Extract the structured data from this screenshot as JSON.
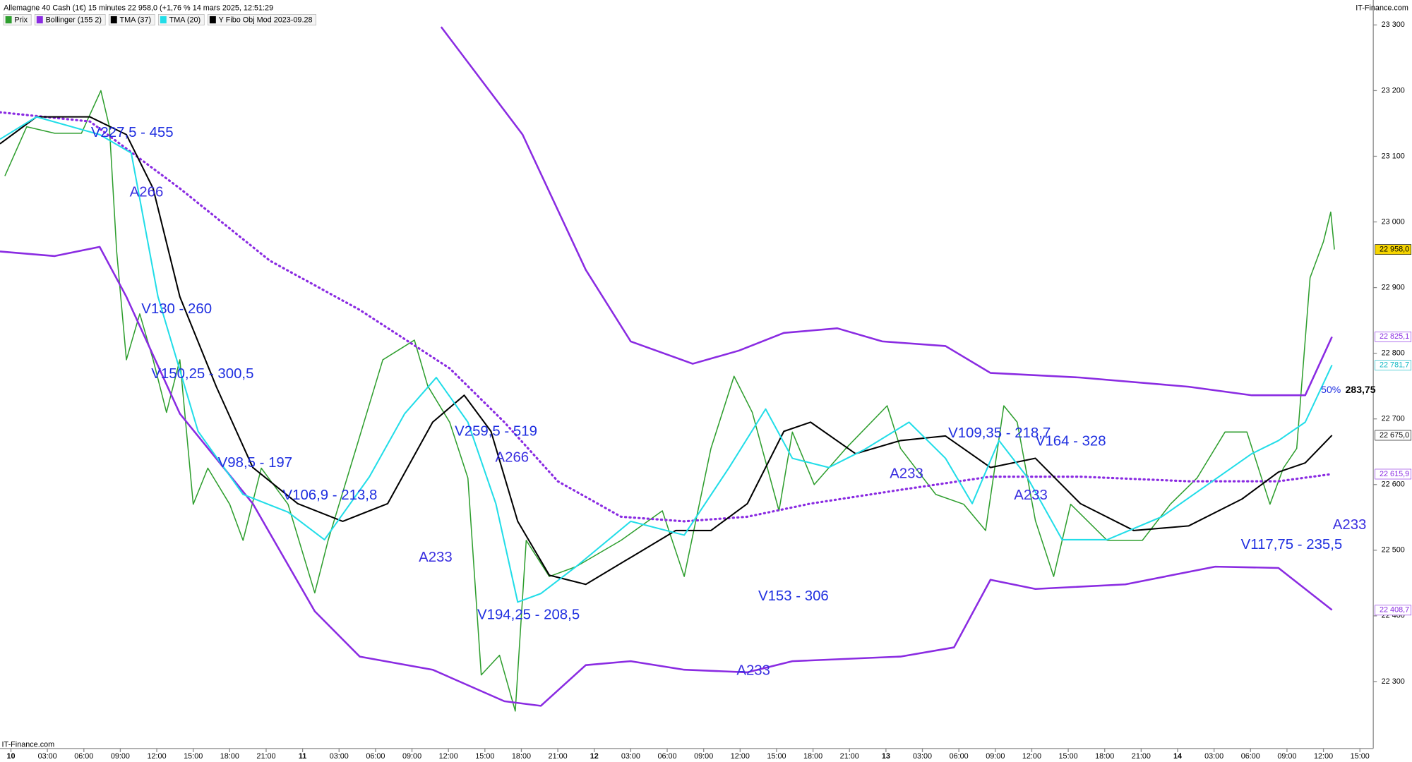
{
  "chart_data": {
    "type": "line",
    "title": "Allemagne 40 Cash (1€) 15 minutes 22 958,0 (+1,76 % 14 mars 2025, 12:51:29",
    "source": "IT-Finance.com",
    "footer": "IT-Finance.com",
    "legend_extra": {
      "name": "Y Fibo Obj Mod 2023-09.28",
      "color": "#000000"
    },
    "xlim": [
      -0.9,
      112.1
    ],
    "ylim": [
      22198,
      23338
    ],
    "grid": false,
    "xticks": [
      {
        "value": 0,
        "label": "10"
      },
      {
        "value": 3,
        "label": "03:00"
      },
      {
        "value": 6,
        "label": "06:00"
      },
      {
        "value": 9,
        "label": "09:00"
      },
      {
        "value": 12,
        "label": "12:00"
      },
      {
        "value": 15,
        "label": "15:00"
      },
      {
        "value": 18,
        "label": "18:00"
      },
      {
        "value": 21,
        "label": "21:00"
      },
      {
        "value": 24,
        "label": "11"
      },
      {
        "value": 27,
        "label": "03:00"
      },
      {
        "value": 30,
        "label": "06:00"
      },
      {
        "value": 33,
        "label": "09:00"
      },
      {
        "value": 36,
        "label": "12:00"
      },
      {
        "value": 39,
        "label": "15:00"
      },
      {
        "value": 42,
        "label": "18:00"
      },
      {
        "value": 45,
        "label": "21:00"
      },
      {
        "value": 48,
        "label": "12"
      },
      {
        "value": 51,
        "label": "03:00"
      },
      {
        "value": 54,
        "label": "06:00"
      },
      {
        "value": 57,
        "label": "09:00"
      },
      {
        "value": 60,
        "label": "12:00"
      },
      {
        "value": 63,
        "label": "15:00"
      },
      {
        "value": 66,
        "label": "18:00"
      },
      {
        "value": 69,
        "label": "21:00"
      },
      {
        "value": 72,
        "label": "13"
      },
      {
        "value": 75,
        "label": "03:00"
      },
      {
        "value": 78,
        "label": "06:00"
      },
      {
        "value": 81,
        "label": "09:00"
      },
      {
        "value": 84,
        "label": "12:00"
      },
      {
        "value": 87,
        "label": "15:00"
      },
      {
        "value": 90,
        "label": "18:00"
      },
      {
        "value": 93,
        "label": "21:00"
      },
      {
        "value": 96,
        "label": "14"
      },
      {
        "value": 99,
        "label": "03:00"
      },
      {
        "value": 102,
        "label": "06:00"
      },
      {
        "value": 105,
        "label": "09:00"
      },
      {
        "value": 108,
        "label": "12:00"
      },
      {
        "value": 111,
        "label": "15:00"
      }
    ],
    "yticks": [
      {
        "value": 22300,
        "label": "22 300"
      },
      {
        "value": 22400,
        "label": "22 400"
      },
      {
        "value": 22500,
        "label": "22 500"
      },
      {
        "value": 22600,
        "label": "22 600"
      },
      {
        "value": 22700,
        "label": "22 700"
      },
      {
        "value": 22800,
        "label": "22 800"
      },
      {
        "value": 22900,
        "label": "22 900"
      },
      {
        "value": 23000,
        "label": "23 000"
      },
      {
        "value": 23100,
        "label": "23 100"
      },
      {
        "value": 23200,
        "label": "23 200"
      },
      {
        "value": 23300,
        "label": "23 300"
      }
    ],
    "series": [
      {
        "name": "Prix",
        "color": "#2e9e2e",
        "x": [
          -0.5,
          1.3,
          3.6,
          5.8,
          7.4,
          8.1,
          8.7,
          9.5,
          10.6,
          11.7,
          12.8,
          13.9,
          15.0,
          16.2,
          18.0,
          19.1,
          20.6,
          22.8,
          25.0,
          26.1,
          28.4,
          30.6,
          33.2,
          34.3,
          36.1,
          37.6,
          38.7,
          40.2,
          41.5,
          42.4,
          44.3,
          46.5,
          50.2,
          53.6,
          55.4,
          57.6,
          59.5,
          61.0,
          63.2,
          64.3,
          66.1,
          68.7,
          72.1,
          73.2,
          76.1,
          78.4,
          80.2,
          81.7,
          82.8,
          84.3,
          85.8,
          87.2,
          90.2,
          93.1,
          95.4,
          97.6,
          99.9,
          101.7,
          103.6,
          104.7,
          105.8,
          106.9,
          108.0,
          108.6,
          108.9
        ],
        "values": [
          23070,
          23145,
          23135,
          23135,
          23200,
          23145,
          22955,
          22790,
          22860,
          22790,
          22710,
          22790,
          22570,
          22625,
          22570,
          22515,
          22625,
          22570,
          22435,
          22515,
          22655,
          22790,
          22820,
          22750,
          22695,
          22610,
          22310,
          22340,
          22255,
          22515,
          22460,
          22475,
          22515,
          22560,
          22460,
          22655,
          22765,
          22710,
          22560,
          22680,
          22600,
          22655,
          22720,
          22655,
          22585,
          22570,
          22530,
          22720,
          22695,
          22545,
          22460,
          22570,
          22515,
          22515,
          22570,
          22610,
          22680,
          22680,
          22570,
          22625,
          22655,
          22915,
          22970,
          23015,
          22958
        ]
      },
      {
        "name": "Bollinger (155 2)",
        "color": "#8a2be2",
        "x": [
          -0.9,
          6.5,
          13.9,
          21.3,
          28.7,
          36.1,
          40.6,
          45.0,
          50.2,
          55.4,
          60.6,
          65.8,
          73.2,
          80.6,
          88.0,
          96.9,
          104.3,
          108.7
        ],
        "values": [
          23167,
          23153,
          23051,
          22941,
          22866,
          22777,
          22695,
          22605,
          22551,
          22544,
          22551,
          22571,
          22592,
          22612,
          22612,
          22605,
          22605,
          22616
        ],
        "upper": {
          "x": [
            35.4,
            42.1,
            47.3,
            51.0,
            56.1,
            59.9,
            63.6,
            68.0,
            71.7,
            76.9,
            80.6,
            88.0,
            96.9,
            102.1,
            106.5,
            108.7
          ],
          "values": [
            23297,
            23133,
            22927,
            22818,
            22784,
            22804,
            22831,
            22838,
            22818,
            22811,
            22770,
            22763,
            22749,
            22736,
            22736,
            22825
          ]
        },
        "lower": {
          "x": [
            -0.9,
            3.6,
            7.3,
            9.5,
            13.9,
            19.9,
            25.0,
            28.7,
            34.7,
            40.6,
            43.6,
            47.3,
            51.0,
            55.4,
            60.6,
            64.3,
            73.2,
            77.6,
            80.6,
            84.3,
            91.7,
            99.1,
            104.3,
            108.7
          ],
          "values": [
            22955,
            22948,
            22962,
            22886,
            22708,
            22571,
            22407,
            22338,
            22318,
            22270,
            22263,
            22325,
            22331,
            22318,
            22314,
            22331,
            22338,
            22352,
            22455,
            22441,
            22448,
            22475,
            22473,
            22409
          ]
        }
      },
      {
        "name": "TMA (37)",
        "color": "#000000",
        "x": [
          -0.9,
          2.1,
          6.5,
          9.5,
          11.7,
          13.9,
          16.9,
          19.9,
          23.6,
          27.3,
          31.0,
          34.7,
          37.3,
          39.5,
          41.7,
          44.3,
          47.3,
          51.0,
          54.7,
          57.6,
          60.6,
          63.6,
          65.8,
          69.5,
          73.2,
          76.9,
          80.6,
          84.3,
          88.0,
          92.4,
          96.9,
          101.3,
          104.3,
          106.5,
          108.7
        ],
        "values": [
          23119,
          23160,
          23160,
          23133,
          23051,
          22886,
          22749,
          22626,
          22571,
          22544,
          22571,
          22695,
          22736,
          22681,
          22544,
          22462,
          22448,
          22489,
          22530,
          22530,
          22571,
          22681,
          22695,
          22647,
          22667,
          22674,
          22626,
          22640,
          22571,
          22530,
          22537,
          22578,
          22619,
          22633,
          22675
        ]
      },
      {
        "name": "TMA (20)",
        "color": "#22dde8",
        "x": [
          -0.9,
          2.1,
          7.3,
          9.9,
          12.1,
          15.4,
          19.1,
          22.8,
          25.8,
          29.5,
          32.4,
          35.0,
          37.6,
          39.9,
          41.7,
          43.6,
          46.5,
          51.0,
          55.4,
          59.1,
          62.1,
          64.3,
          67.3,
          70.2,
          73.9,
          76.9,
          79.1,
          81.3,
          83.6,
          86.5,
          90.2,
          94.7,
          98.4,
          102.1,
          104.3,
          106.5,
          108.7
        ],
        "values": [
          23126,
          23160,
          23133,
          23105,
          22886,
          22681,
          22585,
          22558,
          22516,
          22612,
          22708,
          22763,
          22695,
          22571,
          22421,
          22434,
          22475,
          22544,
          22523,
          22626,
          22715,
          22640,
          22626,
          22653,
          22695,
          22640,
          22571,
          22667,
          22612,
          22516,
          22516,
          22551,
          22599,
          22647,
          22667,
          22695,
          22782
        ]
      }
    ],
    "price_labels": [
      {
        "value": 22958,
        "label": "22 958,0",
        "color": "#000000",
        "background": "#f5d400"
      },
      {
        "value": 22825.1,
        "label": "22 825,1",
        "color": "#8a2be2",
        "background": "#ffffff"
      },
      {
        "value": 22781.7,
        "label": "22 781,7",
        "color": "#0fb8c4",
        "background": "#ffffff"
      },
      {
        "value": 22675,
        "label": "22 675,0",
        "color": "#000000",
        "background": "#ffffff"
      },
      {
        "value": 22615.9,
        "label": "22 615,9",
        "color": "#8a2be2",
        "background": "#ffffff"
      },
      {
        "value": 22408.7,
        "label": "22 408,7",
        "color": "#8a2be2",
        "background": "#ffffff"
      }
    ],
    "annotations": [
      "V227,5  - 455",
      "A266",
      "V130  - 260",
      "V150,25  - 300,5",
      "V98,5  - 197",
      "V106,9  - 213,8",
      "V259,5  - 519",
      "A266",
      "A233",
      "V194,25  - 208,5",
      "A233",
      "V153  - 306",
      "V109,35  - 218,7",
      "V164  - 328",
      "A233",
      "A233",
      "A233",
      "V117,75  - 235,5",
      "50%",
      "283,75"
    ]
  }
}
